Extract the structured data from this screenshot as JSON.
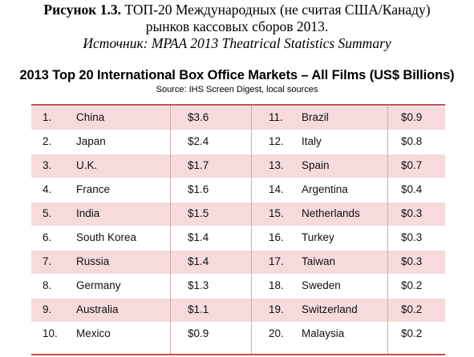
{
  "caption": {
    "label": "Рисунок 1.3.",
    "line1": " ТОП-20 Международных (не считая США/Канаду)",
    "line2": "рынков кассовых сборов 2013.",
    "source": "Источник: MPAA 2013 Theatrical Statistics Summary"
  },
  "table": {
    "title": "2013 Top 20 International Box Office Markets – All Films (US$ Billions)",
    "subtitle": "Source: IHS Screen Digest, local sources",
    "rows": [
      {
        "rank_l": "1.",
        "name_l": "China",
        "val_l": "$3.6",
        "rank_r": "11.",
        "name_r": "Brazil",
        "val_r": "$0.9"
      },
      {
        "rank_l": "2.",
        "name_l": "Japan",
        "val_l": "$2.4",
        "rank_r": "12.",
        "name_r": "Italy",
        "val_r": "$0.8"
      },
      {
        "rank_l": "3.",
        "name_l": "U.K.",
        "val_l": "$1.7",
        "rank_r": "13.",
        "name_r": "Spain",
        "val_r": "$0.7"
      },
      {
        "rank_l": "4.",
        "name_l": "France",
        "val_l": "$1.6",
        "rank_r": "14.",
        "name_r": "Argentina",
        "val_r": "$0.4"
      },
      {
        "rank_l": "5.",
        "name_l": "India",
        "val_l": "$1.5",
        "rank_r": "15.",
        "name_r": "Netherlands",
        "val_r": "$0.3"
      },
      {
        "rank_l": "6.",
        "name_l": "South Korea",
        "val_l": "$1.4",
        "rank_r": "16.",
        "name_r": "Turkey",
        "val_r": "$0.3"
      },
      {
        "rank_l": "7.",
        "name_l": "Russia",
        "val_l": "$1.4",
        "rank_r": "17.",
        "name_r": "Taiwan",
        "val_r": "$0.3"
      },
      {
        "rank_l": "8.",
        "name_l": "Germany",
        "val_l": "$1.3",
        "rank_r": "18.",
        "name_r": "Sweden",
        "val_r": "$0.2"
      },
      {
        "rank_l": "9.",
        "name_l": "Australia",
        "val_l": "$1.1",
        "rank_r": "19.",
        "name_r": "Switzerland",
        "val_r": "$0.2"
      },
      {
        "rank_l": "10.",
        "name_l": "Mexico",
        "val_l": "$0.9",
        "rank_r": "20.",
        "name_r": "Malaysia",
        "val_r": "$0.2"
      }
    ]
  },
  "colors": {
    "shade": "#f5dbdb",
    "rule": "#c0504d"
  }
}
